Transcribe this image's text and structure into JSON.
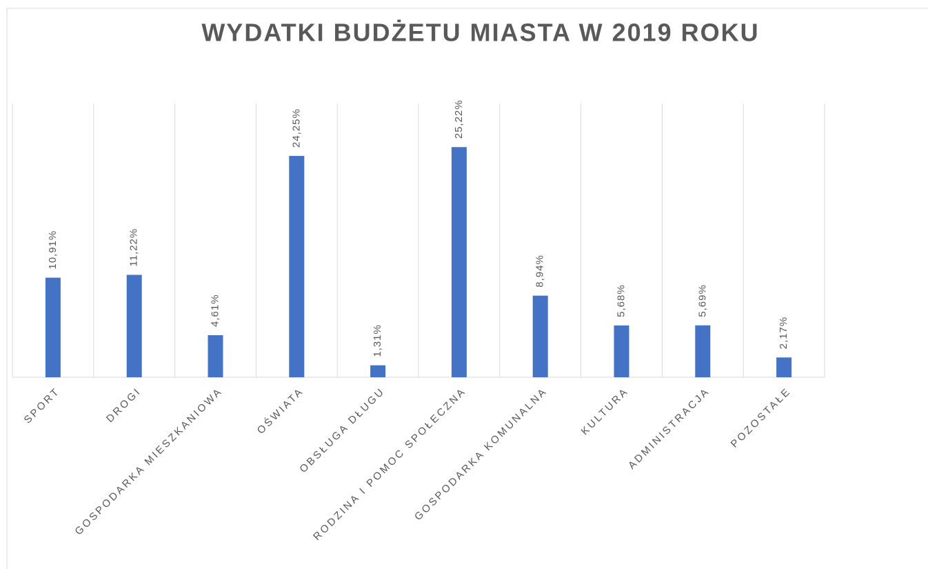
{
  "chart_data": {
    "type": "bar",
    "title": "WYDATKI BUDŻETU MIASTA W 2019 ROKU",
    "categories": [
      "SPORT",
      "DROGI",
      "GOSPODARKA MIESZKANIOWA",
      "OŚWIATA",
      "OBSŁUGA DŁUGU",
      "RODZINA I POMOC SPOŁECZNA",
      "GOSPODARKA KOMUNALNA",
      "KULTURA",
      "ADMINISTRACJA",
      "POZOSTAŁE"
    ],
    "values": [
      10.91,
      11.22,
      4.61,
      24.25,
      1.31,
      25.22,
      8.94,
      5.68,
      5.69,
      2.17
    ],
    "value_labels": [
      "10,91%",
      "11,22%",
      "4,61%",
      "24,25%",
      "1,31%",
      "25,22%",
      "8,94%",
      "5,68%",
      "5,69%",
      "2,17%"
    ],
    "color": "#4472c4",
    "ylim": [
      0,
      30
    ]
  }
}
